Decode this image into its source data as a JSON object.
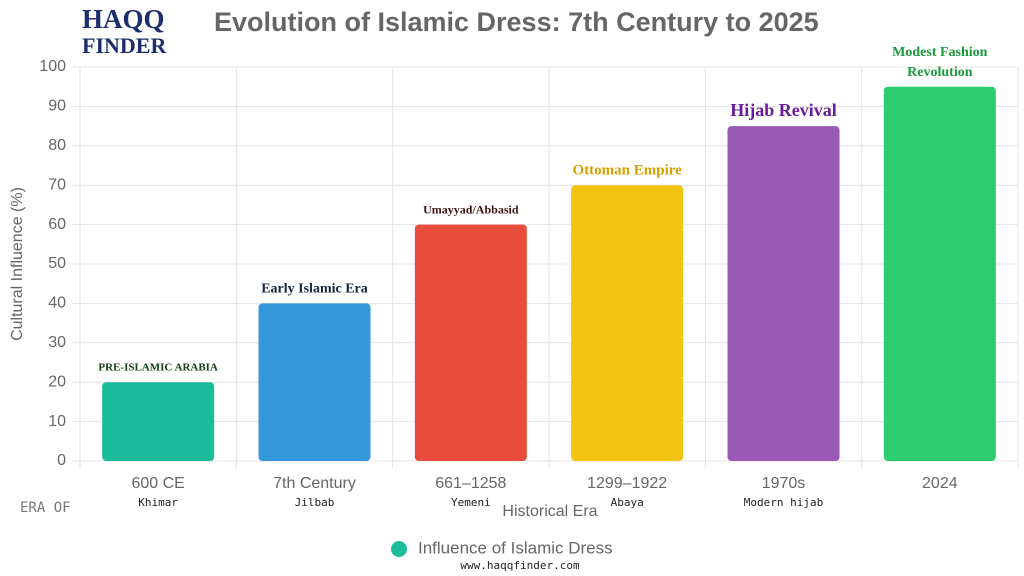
{
  "logo": {
    "line1": "HAQQ",
    "line2": "FINDER"
  },
  "era_prefix": "ERA OF",
  "website": "www.haqqfinder.com",
  "chart_data": {
    "type": "bar",
    "title": "Evolution of Islamic Dress: 7th Century to 2025",
    "x_label": "Historical Era",
    "y_label": "Cultural Influence (%)",
    "categories": [
      "600 CE",
      "7th Century",
      "661–1258",
      "1299–1922",
      "1970s",
      "2024"
    ],
    "sublabels": [
      "Khimar",
      "Jilbab",
      "Yemeni",
      "Abaya",
      "Modern hijab",
      null
    ],
    "series": [
      {
        "name": "Influence of Islamic Dress",
        "color": "#1abc9c",
        "values": [
          20,
          40,
          60,
          70,
          85,
          95
        ],
        "bar_colors": [
          "#1abc9c",
          "#3498db",
          "#e74c3c",
          "#f1c40f",
          "#9b59b6",
          "#2ecc71"
        ]
      }
    ],
    "annotations": [
      {
        "lines": [
          "PRE-ISLAMIC ARABIA"
        ],
        "color": "#14401a"
      },
      {
        "lines": [
          "Early Islamic Era"
        ],
        "color": "#14243f"
      },
      {
        "lines": [
          "Umayyad/Abbasid"
        ],
        "color": "#3f1414"
      },
      {
        "lines": [
          "Ottoman Empire"
        ],
        "color": "#d4a000"
      },
      {
        "lines": [
          "Hijab Revival"
        ],
        "color": "#6a1b9a"
      },
      {
        "lines": [
          "Modest Fashion",
          "Revolution"
        ],
        "color": "#1a9a3a"
      }
    ],
    "ylim": [
      0,
      100
    ],
    "yticks": [
      0,
      10,
      20,
      30,
      40,
      50,
      60,
      70,
      80,
      90,
      100
    ],
    "grid": true,
    "legend": "bottom"
  }
}
